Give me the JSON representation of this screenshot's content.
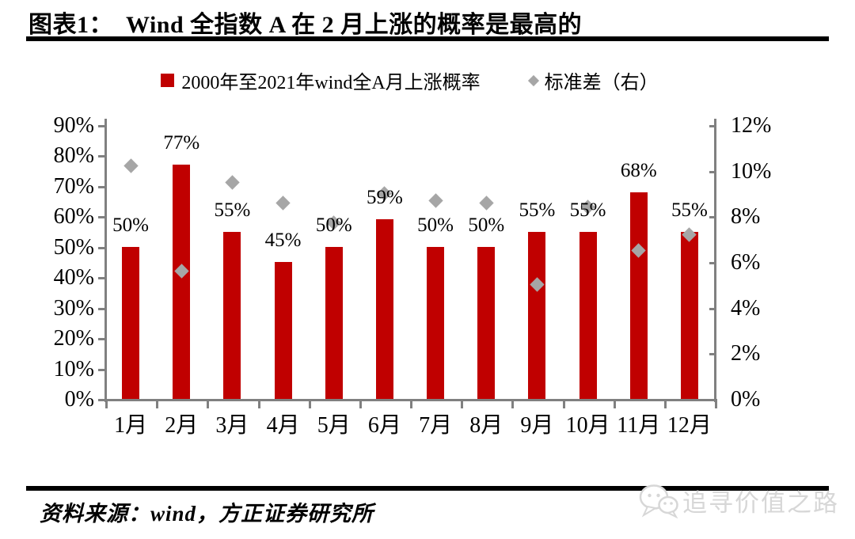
{
  "header": {
    "title": "图表1：  Wind 全指数 A 在 2 月上涨的概率是最高的"
  },
  "legend": {
    "bars_label": "2000年至2021年wind全A月上涨概率",
    "std_label": "标准差（右）"
  },
  "chart_data": {
    "type": "bar",
    "title": "Wind 全指数 A 在 2 月上涨的概率是最高的",
    "categories": [
      "1月",
      "2月",
      "3月",
      "4月",
      "5月",
      "6月",
      "7月",
      "8月",
      "9月",
      "10月",
      "11月",
      "12月"
    ],
    "series": [
      {
        "name": "2000年至2021年wind全A月上涨概率",
        "type": "bar",
        "axis": "left",
        "color": "#c00000",
        "values": [
          50,
          77,
          55,
          45,
          50,
          59,
          50,
          50,
          55,
          55,
          68,
          55
        ],
        "labels": [
          "50%",
          "77%",
          "55%",
          "45%",
          "50%",
          "59%",
          "50%",
          "50%",
          "55%",
          "55%",
          "68%",
          "55%"
        ]
      },
      {
        "name": "标准差（右）",
        "type": "scatter",
        "marker": "diamond",
        "axis": "right",
        "color": "#a6a6a6",
        "values": [
          10.2,
          5.6,
          9.5,
          8.6,
          7.7,
          9.0,
          8.7,
          8.6,
          5.0,
          8.4,
          6.5,
          7.2
        ]
      }
    ],
    "left_axis": {
      "min": 0,
      "max": 90,
      "step": 10,
      "tick_labels": [
        "0%",
        "10%",
        "20%",
        "30%",
        "40%",
        "50%",
        "60%",
        "70%",
        "80%",
        "90%"
      ]
    },
    "right_axis": {
      "min": 0,
      "max": 12,
      "step": 2,
      "tick_labels": [
        "0%",
        "2%",
        "4%",
        "6%",
        "8%",
        "10%",
        "12%"
      ]
    },
    "grid": false,
    "legend_position": "top"
  },
  "footer": {
    "source": "资料来源：wind，方正证券研究所",
    "watermark": "追寻价值之路"
  },
  "colors": {
    "bar": "#c00000",
    "marker": "#a6a6a6",
    "axis": "#808080",
    "rule": "#000000",
    "watermark": "#d7d7d7"
  }
}
